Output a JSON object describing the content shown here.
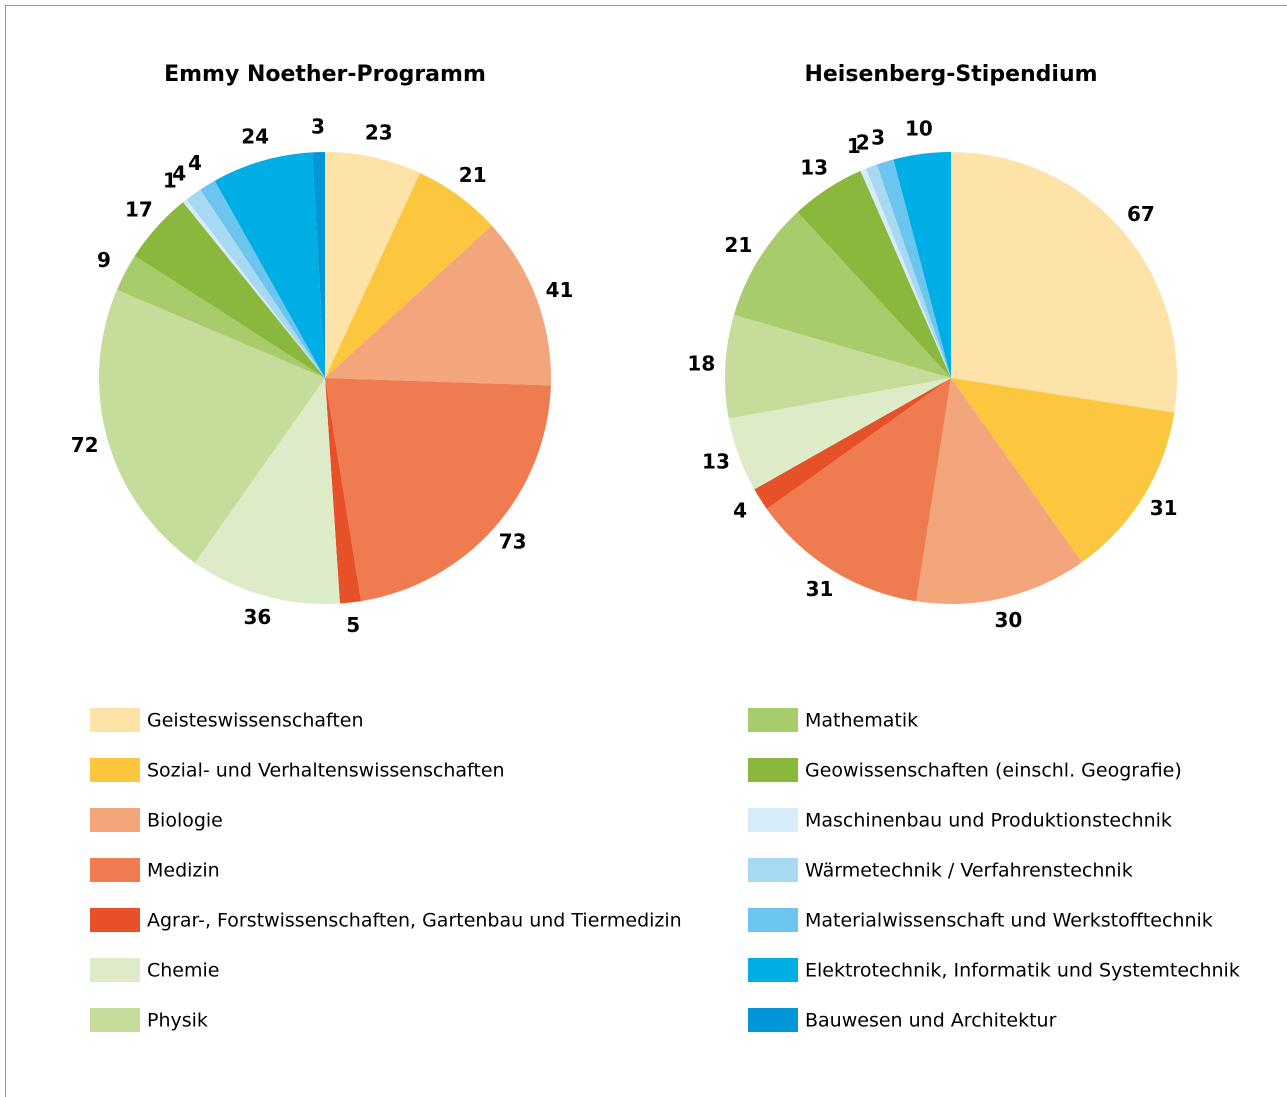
{
  "categories": [
    "Geisteswissenschaften",
    "Sozial- und Verhaltenswissenschaften",
    "Biologie",
    "Medizin",
    "Agrar-, Forstwissenschaften, Gartenbau und Tiermedizin",
    "Chemie",
    "Physik",
    "Mathematik",
    "Geowissenschaften (einschl. Geografie)",
    "Maschinenbau und Produktionstechnik",
    "Wärmetechnik / Verfahrenstechnik",
    "Materialwissenschaft und Werkstofftechnik",
    "Elektrotechnik, Informatik und Systemtechnik",
    "Bauwesen und Architektur"
  ],
  "colors": [
    "#fde3a7",
    "#fcc63f",
    "#f3a57c",
    "#ef7c50",
    "#e6512a",
    "#deebc8",
    "#c5dc9a",
    "#a8cb6c",
    "#8ab83c",
    "#d6ecf8",
    "#a8d9f2",
    "#6cc5ee",
    "#00aee6",
    "#0096d8"
  ],
  "chart_data": [
    {
      "type": "pie",
      "title": "Emmy Noether-Programm",
      "values": [
        23,
        21,
        41,
        73,
        5,
        36,
        72,
        9,
        17,
        1,
        4,
        4,
        24,
        3
      ]
    },
    {
      "type": "pie",
      "title": "Heisenberg-Stipendium",
      "values": [
        67,
        31,
        30,
        31,
        4,
        13,
        18,
        21,
        13,
        1,
        2,
        3,
        10,
        null
      ]
    }
  ]
}
